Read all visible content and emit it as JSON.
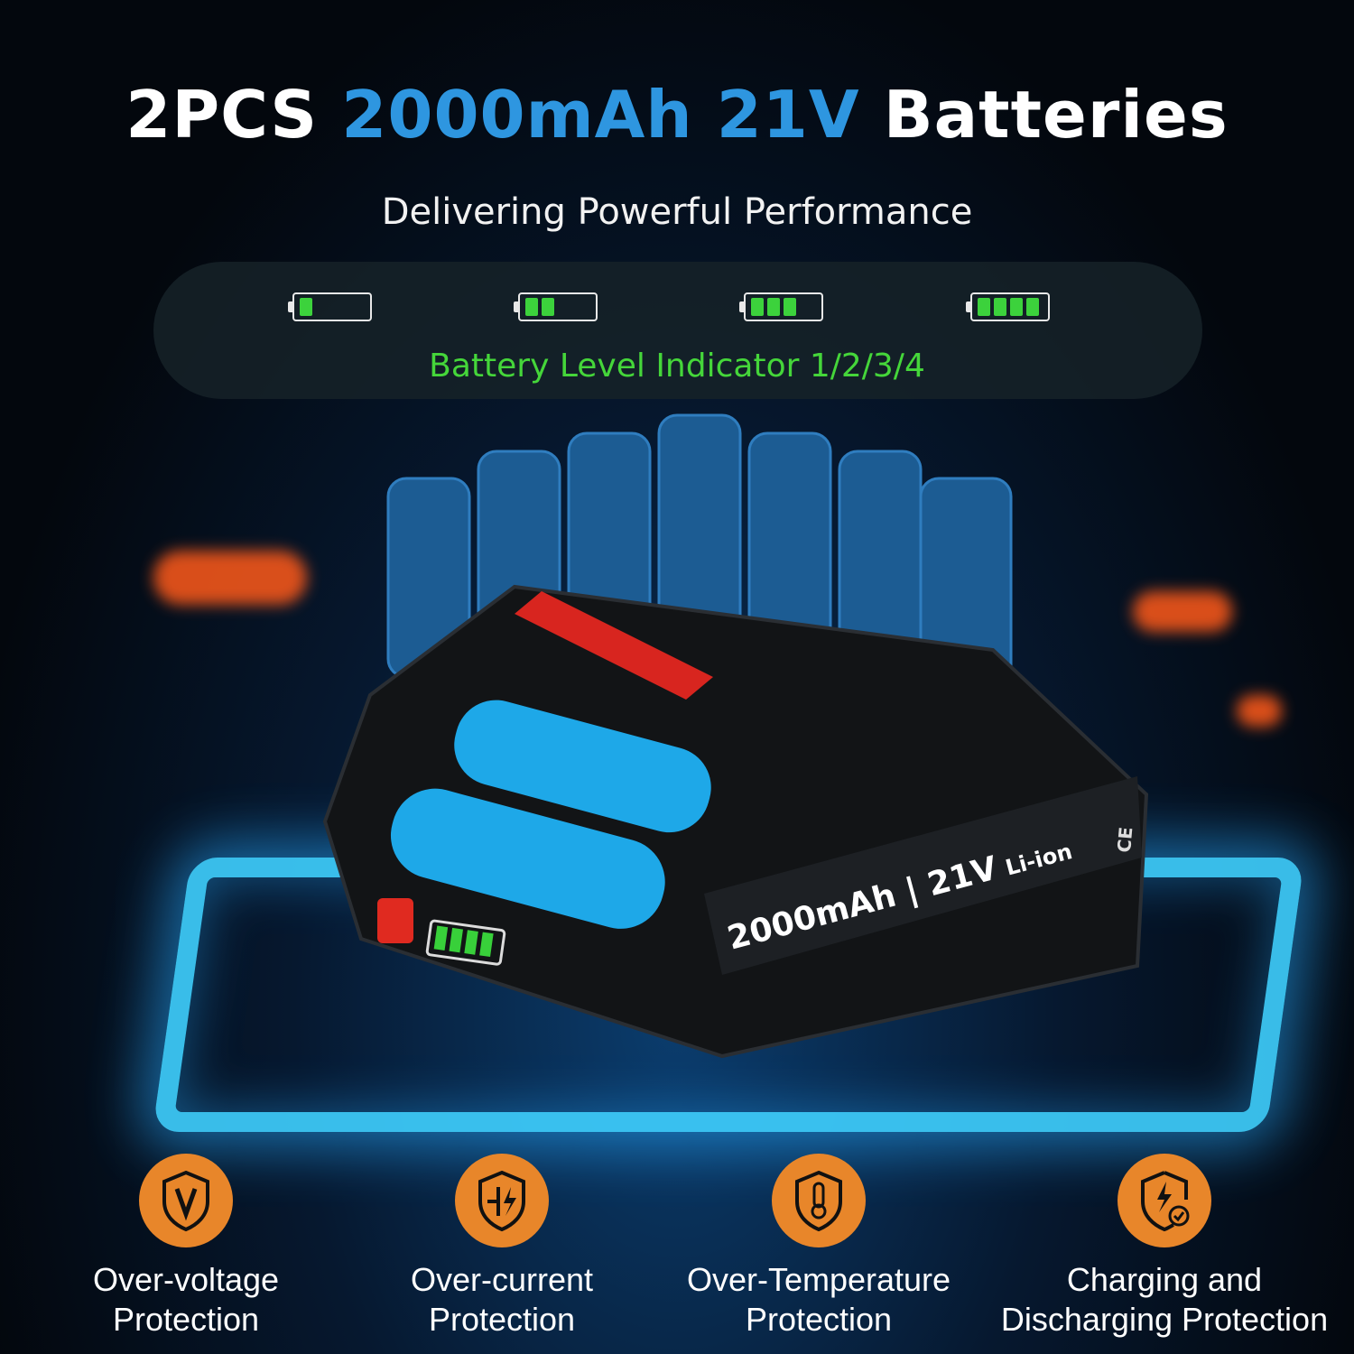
{
  "header": {
    "title_prefix": "2PCS",
    "title_highlight": "2000mAh 21V",
    "title_suffix": "Batteries",
    "subtitle": "Delivering Powerful Performance"
  },
  "indicator": {
    "levels": [
      1,
      2,
      3,
      4
    ],
    "label": "Battery Level Indicator 1/2/3/4",
    "color": "#45d63a"
  },
  "product": {
    "label_capacity": "2000mAh",
    "label_voltage": "21V",
    "label_type": "Li-ion",
    "cert_marks": "CE"
  },
  "features": [
    {
      "icon": "shield-voltage-icon",
      "line1": "Over-voltage",
      "line2": "Protection"
    },
    {
      "icon": "shield-current-icon",
      "line1": "Over-current",
      "line2": "Protection"
    },
    {
      "icon": "shield-thermometer-icon",
      "line1": "Over-Temperature",
      "line2": "Protection"
    },
    {
      "icon": "shield-charge-check-icon",
      "line1": "Charging and",
      "line2": "Discharging Protection"
    }
  ],
  "colors": {
    "accent_blue": "#2e96e0",
    "icon_orange": "#e8862a",
    "glow": "#3fd0ff"
  }
}
